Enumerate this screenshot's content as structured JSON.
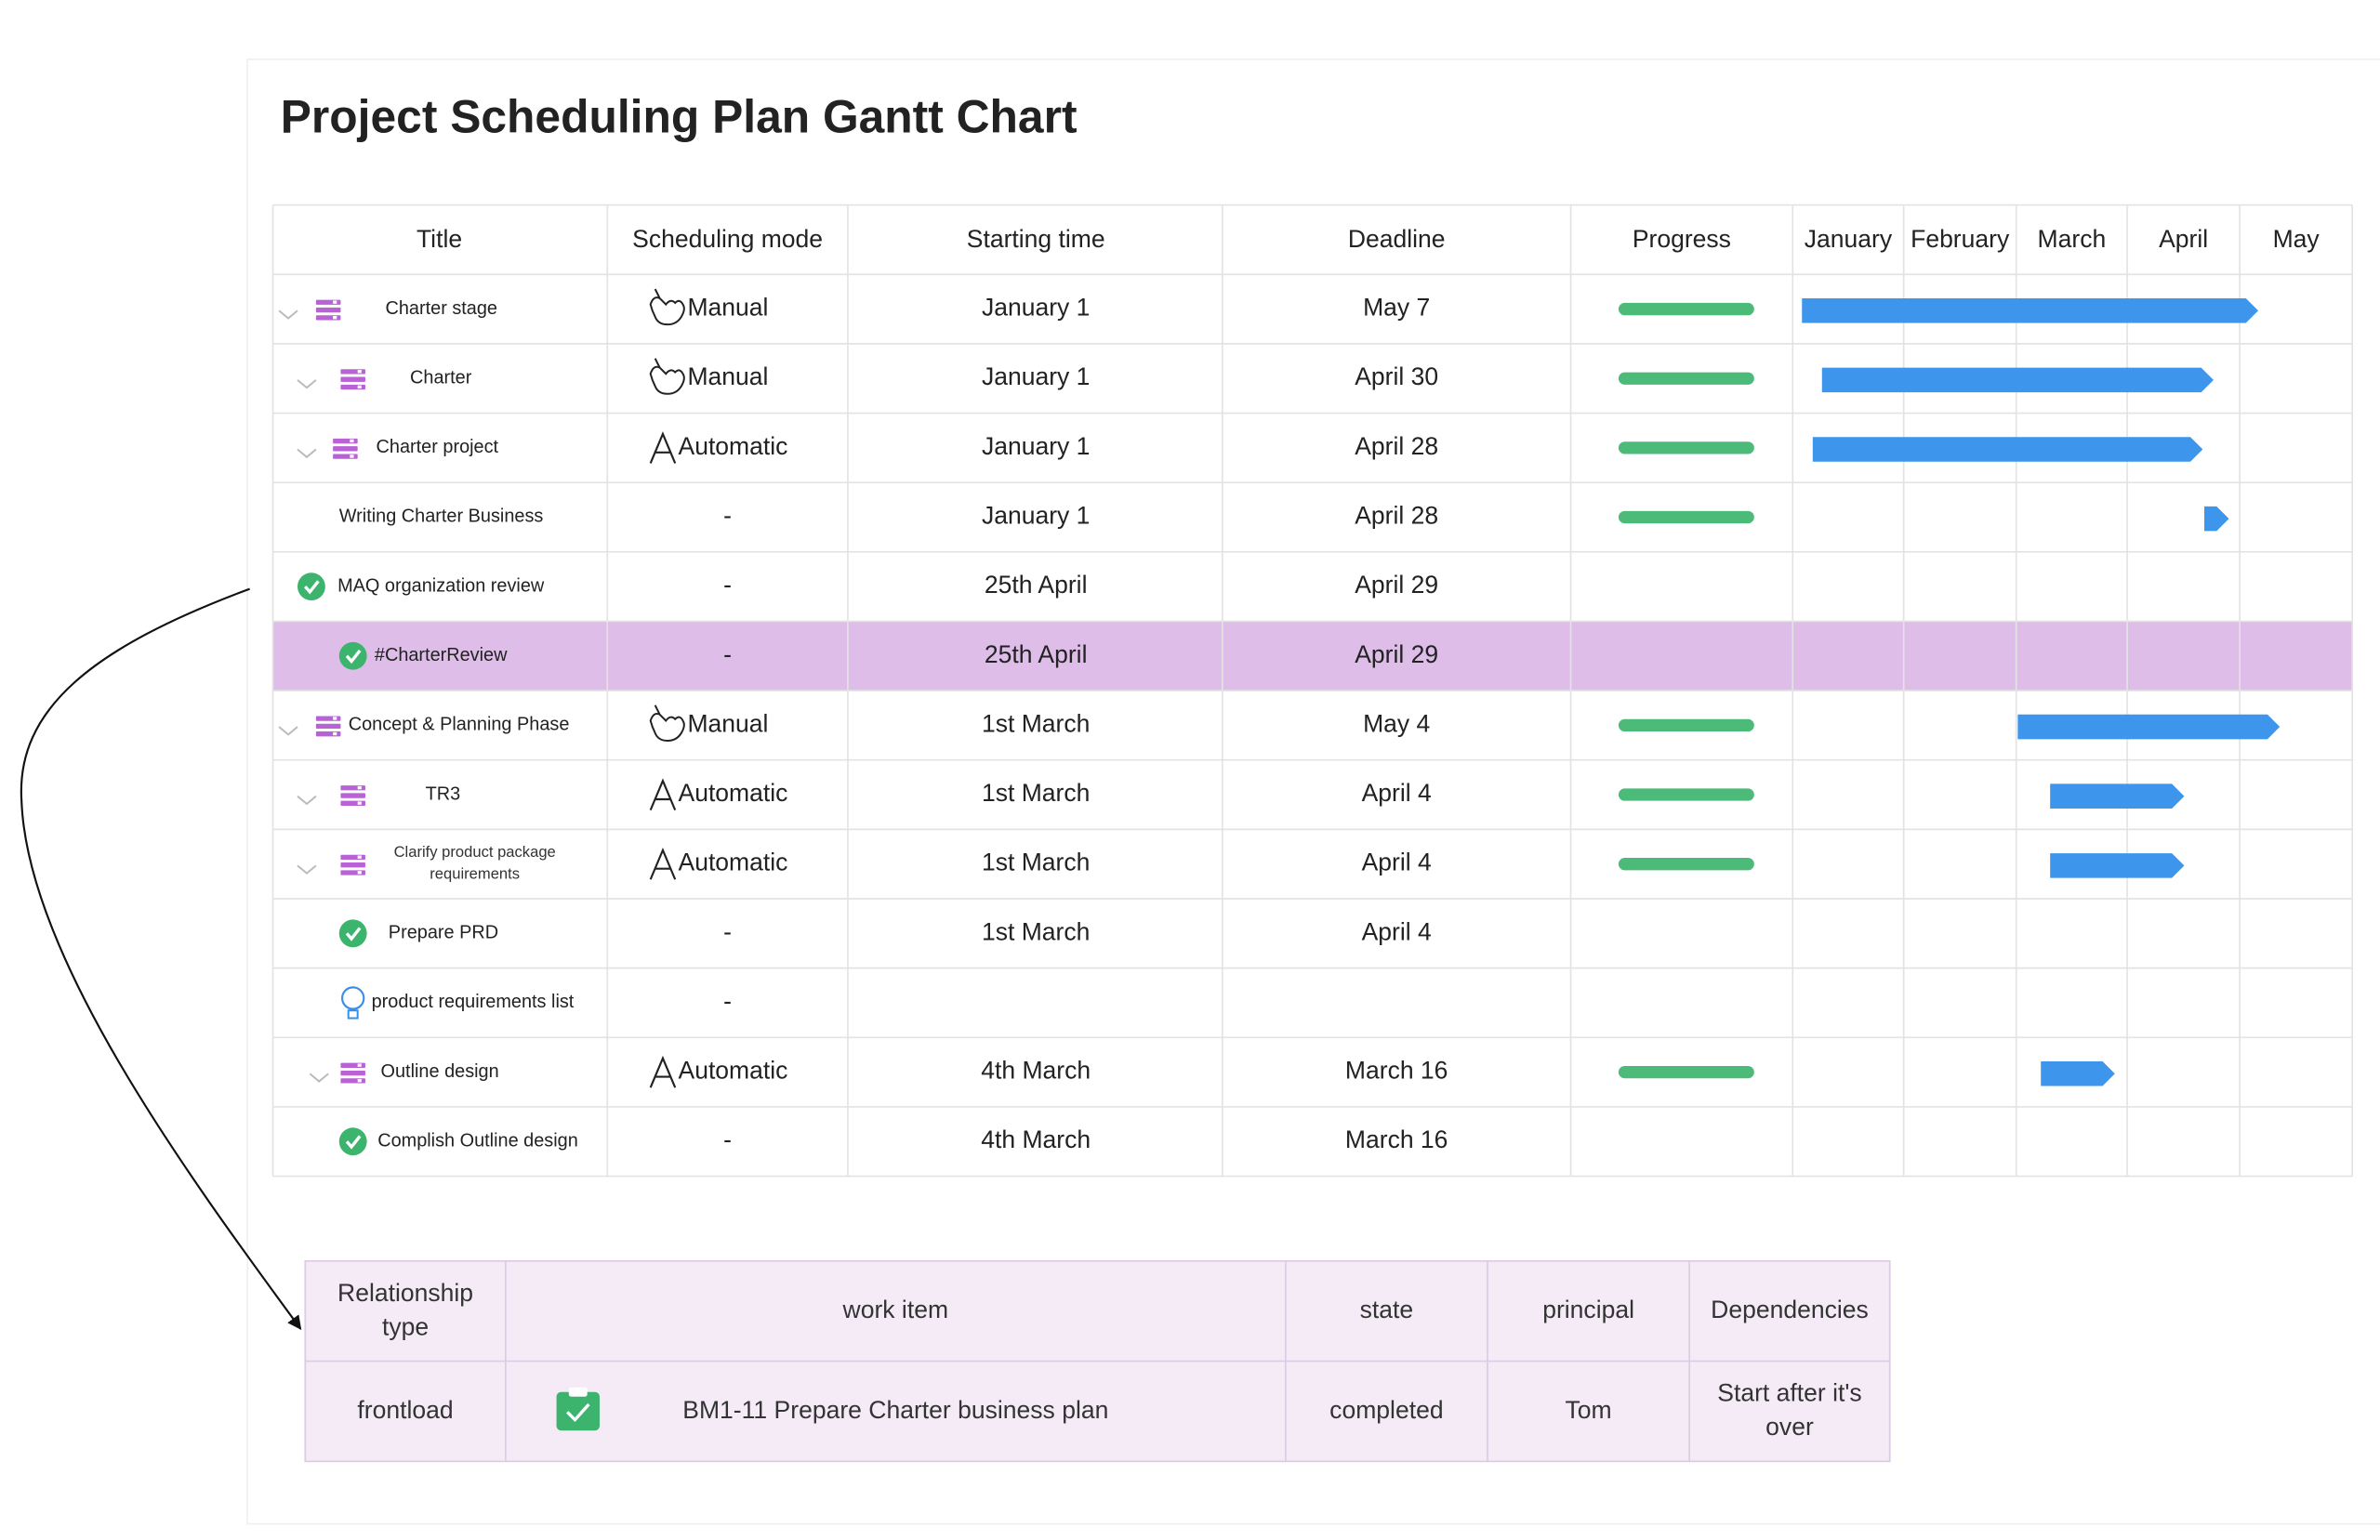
{
  "title": "Project Scheduling Plan Gantt Chart",
  "gantt": {
    "columns": [
      "Title",
      "Scheduling mode",
      "Starting time",
      "Deadline",
      "Progress"
    ],
    "months": [
      "January",
      "February",
      "March",
      "April",
      "May"
    ],
    "rows": [
      {
        "title": "Charter stage",
        "mode": "Manual",
        "start": "January 1",
        "deadline": "May 7"
      },
      {
        "title": "Charter",
        "mode": "Manual",
        "start": "January 1",
        "deadline": "April 30"
      },
      {
        "title": "Charter  project",
        "mode": "Automatic",
        "start": "January 1",
        "deadline": "April 28"
      },
      {
        "title": "Writing Charter Business",
        "mode": "-",
        "start": "January 1",
        "deadline": "April 28"
      },
      {
        "title": "MAQ organization review",
        "mode": "-",
        "start": "25th  April",
        "deadline": "April 29"
      },
      {
        "title": "#CharterReview",
        "mode": "-",
        "start": "25th April",
        "deadline": "April 29"
      },
      {
        "title": "Concept & Planning Phase",
        "mode": "Manual",
        "start": "1st March",
        "deadline": "May 4"
      },
      {
        "title": "TR3",
        "mode": "Automatic",
        "start": "1st March",
        "deadline": "April 4"
      },
      {
        "title": "Clarify product package requirements",
        "mode": "Automatic",
        "start": "1st March",
        "deadline": "April 4"
      },
      {
        "title": "Prepare PRD",
        "mode": "-",
        "start": "1st March",
        "deadline": "April 4"
      },
      {
        "title": "product requirements list",
        "mode": "-"
      },
      {
        "title": "Outline design",
        "mode": "Automatic",
        "start": "4th March",
        "deadline": "March 16"
      },
      {
        "title": "Complish Outline design",
        "mode": "-",
        "start": "4th March",
        "deadline": "March 16"
      }
    ]
  },
  "relations": {
    "columns": [
      "Relationship type",
      "work item",
      "state",
      "principal",
      "Dependencies"
    ],
    "rows": [
      {
        "type": "frontload",
        "work_item": "BM1-11 Prepare Charter business plan",
        "state": "completed",
        "principal": "Tom",
        "dependencies": "Start after it's over"
      }
    ]
  }
}
